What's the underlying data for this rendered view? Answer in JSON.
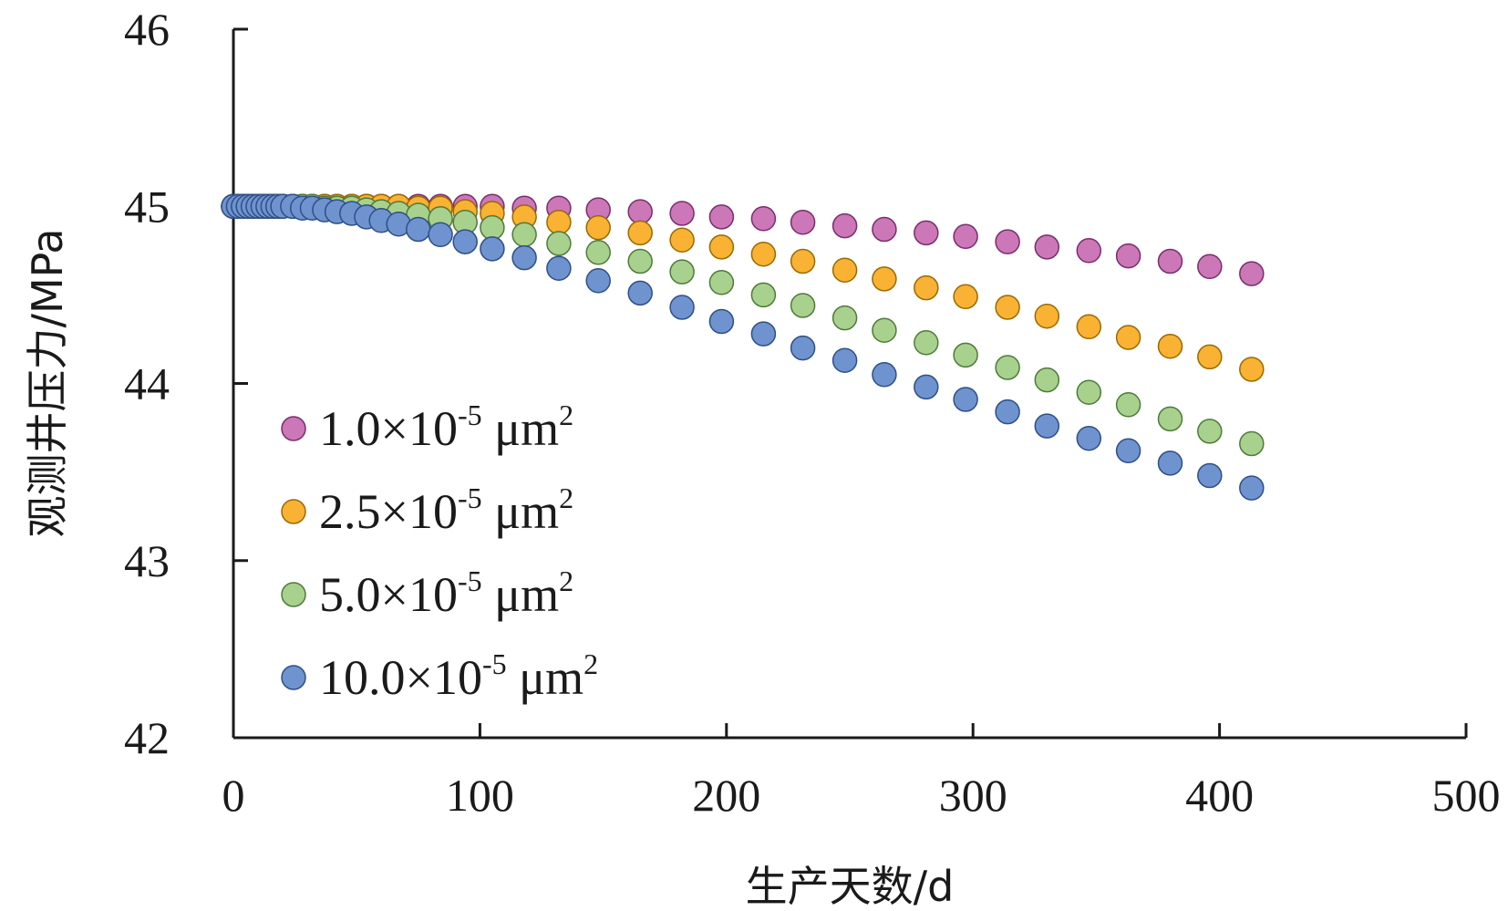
{
  "chart_data": {
    "type": "scatter",
    "xlabel": "生产天数/d",
    "ylabel": "观测井压力/MPa",
    "xlim": [
      0,
      500
    ],
    "ylim": [
      42,
      46
    ],
    "xticks": [
      0,
      100,
      200,
      300,
      400,
      500
    ],
    "yticks": [
      42,
      43,
      44,
      45,
      46
    ],
    "grid": false,
    "legend_position": "lower-left",
    "legend_labels": [
      {
        "base": "1.0×10",
        "exp": "-5",
        "unit": " μm",
        "unit_exp": "2"
      },
      {
        "base": "2.5×10",
        "exp": "-5",
        "unit": " μm",
        "unit_exp": "2"
      },
      {
        "base": "5.0×10",
        "exp": "-5",
        "unit": " μm",
        "unit_exp": "2"
      },
      {
        "base": "10.0×10",
        "exp": "-5",
        "unit": " μm",
        "unit_exp": "2"
      }
    ],
    "x": [
      0,
      2,
      4,
      6,
      8,
      10,
      12,
      14,
      16,
      18,
      20,
      24,
      28,
      32,
      37,
      42,
      48,
      54,
      60,
      67,
      75,
      84,
      94,
      105,
      118,
      132,
      148,
      165,
      182,
      198,
      215,
      231,
      248,
      264,
      281,
      297,
      314,
      330,
      347,
      363,
      380,
      396,
      413
    ],
    "series": [
      {
        "color": "#cc77b8",
        "edge": "#7a2d6c",
        "values": [
          45.0,
          45.0,
          45.0,
          45.0,
          45.0,
          45.0,
          45.0,
          45.0,
          45.0,
          45.0,
          45.0,
          45.0,
          45.0,
          45.0,
          45.0,
          45.0,
          45.0,
          45.0,
          45.0,
          45.0,
          45.0,
          45.0,
          45.0,
          45.0,
          44.99,
          44.99,
          44.98,
          44.97,
          44.96,
          44.94,
          44.93,
          44.91,
          44.89,
          44.87,
          44.85,
          44.83,
          44.8,
          44.77,
          44.75,
          44.72,
          44.69,
          44.66,
          44.62
        ]
      },
      {
        "color": "#f9b233",
        "edge": "#9a6a00",
        "values": [
          45.0,
          45.0,
          45.0,
          45.0,
          45.0,
          45.0,
          45.0,
          45.0,
          45.0,
          45.0,
          45.0,
          45.0,
          45.0,
          45.0,
          45.0,
          45.0,
          45.0,
          45.0,
          45.0,
          45.0,
          44.99,
          44.99,
          44.97,
          44.96,
          44.94,
          44.91,
          44.88,
          44.85,
          44.81,
          44.77,
          44.73,
          44.69,
          44.64,
          44.59,
          44.54,
          44.49,
          44.43,
          44.38,
          44.32,
          44.26,
          44.21,
          44.15,
          44.08
        ]
      },
      {
        "color": "#a9d18e",
        "edge": "#4e7a3a",
        "values": [
          45.0,
          45.0,
          45.0,
          45.0,
          45.0,
          45.0,
          45.0,
          45.0,
          45.0,
          45.0,
          45.0,
          45.0,
          45.0,
          45.0,
          44.99,
          44.99,
          44.99,
          44.98,
          44.97,
          44.96,
          44.95,
          44.93,
          44.91,
          44.88,
          44.84,
          44.79,
          44.74,
          44.69,
          44.63,
          44.57,
          44.5,
          44.44,
          44.37,
          44.3,
          44.23,
          44.16,
          44.09,
          44.02,
          43.95,
          43.88,
          43.8,
          43.73,
          43.66
        ]
      },
      {
        "color": "#6f93cf",
        "edge": "#2f4f86",
        "values": [
          45.0,
          45.0,
          45.0,
          45.0,
          45.0,
          45.0,
          45.0,
          45.0,
          45.0,
          45.0,
          45.0,
          45.0,
          44.99,
          44.99,
          44.98,
          44.97,
          44.96,
          44.94,
          44.92,
          44.9,
          44.87,
          44.84,
          44.8,
          44.76,
          44.71,
          44.65,
          44.58,
          44.51,
          44.43,
          44.35,
          44.28,
          44.2,
          44.13,
          44.05,
          43.98,
          43.91,
          43.84,
          43.76,
          43.69,
          43.62,
          43.55,
          43.48,
          43.41
        ]
      }
    ]
  }
}
